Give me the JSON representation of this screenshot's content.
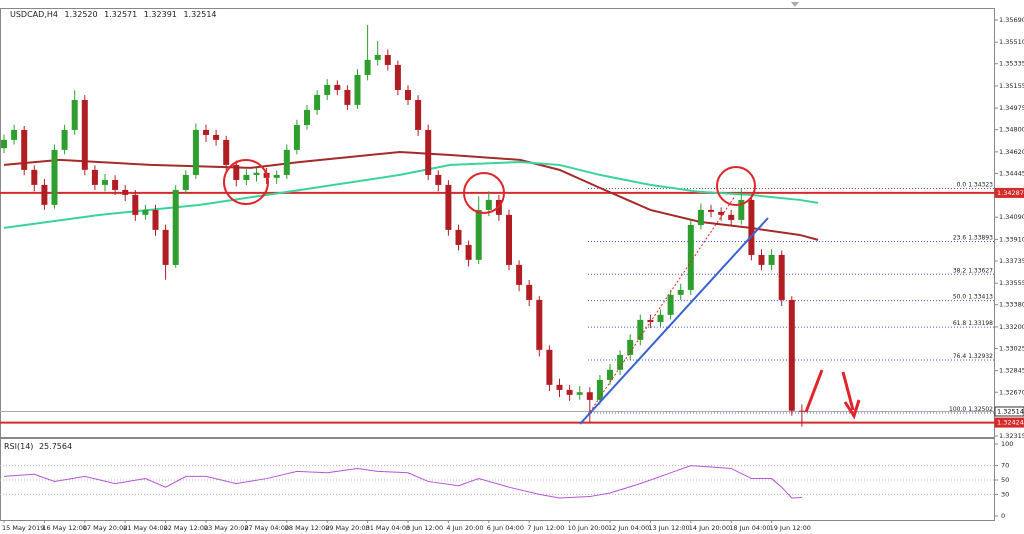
{
  "chart_data": {
    "type": "candlestick",
    "header": [
      "USDCAD,H4",
      "1.32520",
      "1.32571",
      "1.32391",
      "1.32514"
    ],
    "categories": [
      "15 May 2019",
      null,
      null,
      null,
      "16 May 12:00",
      null,
      null,
      null,
      "17 May 20:00",
      null,
      null,
      null,
      "21 May 04:00",
      null,
      null,
      null,
      "22 May 12:00",
      null,
      null,
      null,
      "23 May 20:00",
      null,
      null,
      null,
      "27 May 04:00",
      null,
      null,
      null,
      "28 May 12:00",
      null,
      null,
      null,
      "29 May 20:00",
      null,
      null,
      null,
      "31 May 04:00",
      null,
      null,
      null,
      "3 Jun 12:00",
      null,
      null,
      null,
      "4 Jun 20:00",
      null,
      null,
      null,
      "6 Jun 04:00",
      null,
      null,
      null,
      "7 Jun 12:00",
      null,
      null,
      null,
      "10 Jun 20:00",
      null,
      null,
      null,
      "12 Jun 04:00",
      null,
      null,
      null,
      "13 Jun 12:00",
      null,
      null,
      null,
      "14 Jun 20:00",
      null,
      null,
      null,
      "18 Jun 04:00",
      null,
      null,
      null,
      "19 Jun 12:00",
      null,
      null,
      null
    ],
    "open": [
      1.3465,
      1.34717,
      1.34798,
      1.34474,
      1.34352,
      1.3419,
      1.34636,
      1.34798,
      1.35041,
      1.34474,
      1.34352,
      1.34392,
      1.34311,
      1.34271,
      1.34109,
      1.34149,
      1.33987,
      1.33703,
      1.34311,
      1.34433,
      1.34798,
      1.34757,
      1.34717,
      1.34514,
      1.34392,
      1.34433,
      1.3445,
      1.34409,
      1.34433,
      1.34636,
      1.34838,
      1.3496,
      1.35082,
      1.35163,
      1.35122,
      1.35001,
      1.35244,
      1.35366,
      1.35406,
      1.35325,
      1.35122,
      1.35041,
      1.34798,
      1.34433,
      1.34352,
      1.33987,
      1.33865,
      1.33744,
      1.34149,
      1.3423,
      1.34109,
      1.33703,
      1.33541,
      1.33419,
      1.33014,
      1.3273,
      1.32689,
      1.32649,
      1.3267,
      1.32608,
      1.3277,
      1.32852,
      1.32973,
      1.33095,
      1.33257,
      1.3324,
      1.33298,
      1.3346,
      1.335,
      1.34027,
      1.34149,
      1.34133,
      1.34109,
      1.34068,
      1.3423,
      1.33784,
      1.33703,
      1.33784,
      1.33419,
      1.3252
    ],
    "high": [
      1.3476,
      1.3484,
      1.3483,
      1.3451,
      1.344,
      1.3468,
      1.3484,
      1.3512,
      1.3508,
      1.3451,
      1.3444,
      1.3443,
      1.3435,
      1.3431,
      1.3419,
      1.3419,
      1.3403,
      1.3435,
      1.3447,
      1.3485,
      1.3484,
      1.348,
      1.3475,
      1.3455,
      1.3448,
      1.3449,
      1.3449,
      1.3447,
      1.3468,
      1.3488,
      1.35,
      1.3512,
      1.3521,
      1.352,
      1.3516,
      1.3529,
      1.3565,
      1.3552,
      1.3545,
      1.3536,
      1.3516,
      1.3508,
      1.3484,
      1.3447,
      1.3439,
      1.3403,
      1.339,
      1.3426,
      1.343,
      1.3427,
      1.3415,
      1.3374,
      1.3358,
      1.3345,
      1.3305,
      1.3278,
      1.3273,
      1.3272,
      1.3271,
      1.3281,
      1.329,
      1.3301,
      1.3314,
      1.333,
      1.333,
      1.3334,
      1.335,
      1.3355,
      1.3407,
      1.342,
      1.3419,
      1.3417,
      1.3415,
      1.34323,
      1.3427,
      1.3383,
      1.3383,
      1.3382,
      1.3345,
      1.32571
    ],
    "low": [
      1.3461,
      1.3468,
      1.3443,
      1.343,
      1.3415,
      1.3416,
      1.346,
      1.3476,
      1.3443,
      1.3431,
      1.343,
      1.3427,
      1.3422,
      1.3406,
      1.3407,
      1.3394,
      1.33582,
      1.3368,
      1.3428,
      1.344,
      1.347,
      1.3467,
      1.3447,
      1.3434,
      1.3435,
      1.3438,
      1.3436,
      1.3436,
      1.344,
      1.346,
      1.348,
      1.3492,
      1.3504,
      1.3508,
      1.3496,
      1.3497,
      1.352,
      1.3532,
      1.3528,
      1.3508,
      1.35,
      1.3475,
      1.3439,
      1.343,
      1.3394,
      1.3382,
      1.3369,
      1.3371,
      1.341,
      1.3406,
      1.3366,
      1.3349,
      1.3337,
      1.3296,
      1.3268,
      1.3263,
      1.326,
      1.3261,
      1.32424,
      1.3257,
      1.3273,
      1.3281,
      1.3293,
      1.3305,
      1.3319,
      1.332,
      1.3326,
      1.3342,
      1.3346,
      1.3399,
      1.3409,
      1.3406,
      1.3402,
      1.3403,
      1.3374,
      1.3366,
      1.3366,
      1.3337,
      1.3248,
      1.32391
    ],
    "close": [
      1.34717,
      1.34798,
      1.34474,
      1.34352,
      1.3419,
      1.34636,
      1.34798,
      1.35041,
      1.34474,
      1.34352,
      1.34392,
      1.34311,
      1.34271,
      1.34109,
      1.34149,
      1.33987,
      1.33703,
      1.34311,
      1.34433,
      1.34798,
      1.34757,
      1.34717,
      1.34514,
      1.34392,
      1.34433,
      1.3445,
      1.34409,
      1.34433,
      1.34636,
      1.34838,
      1.3496,
      1.35082,
      1.35163,
      1.35122,
      1.35001,
      1.35244,
      1.35366,
      1.35406,
      1.35325,
      1.35122,
      1.35041,
      1.34798,
      1.34433,
      1.34352,
      1.33987,
      1.33865,
      1.33744,
      1.34149,
      1.3423,
      1.34109,
      1.33703,
      1.33541,
      1.33419,
      1.33014,
      1.3273,
      1.32689,
      1.32649,
      1.3267,
      1.32608,
      1.3277,
      1.32852,
      1.32973,
      1.33095,
      1.33257,
      1.3324,
      1.33298,
      1.3346,
      1.335,
      1.34027,
      1.34149,
      1.34133,
      1.34109,
      1.34068,
      1.3423,
      1.33784,
      1.33703,
      1.33784,
      1.33419,
      1.3252,
      1.32514
    ],
    "up_color": "#2e9e2e",
    "down_color": "#b01e24",
    "ylim": [
      1.32307,
      1.35787
    ],
    "yticks": [
      {
        "value": 1.3569,
        "label": "1.35690"
      },
      {
        "value": 1.3551,
        "label": "1.35510"
      },
      {
        "value": 1.35335,
        "label": "1.35335"
      },
      {
        "value": 1.35155,
        "label": "1.35155"
      },
      {
        "value": 1.34975,
        "label": "1.34975"
      },
      {
        "value": 1.348,
        "label": "1.34800"
      },
      {
        "value": 1.3462,
        "label": "1.34620"
      },
      {
        "value": 1.34445,
        "label": "1.34445"
      },
      {
        "value": 1.3409,
        "label": "1.34090"
      },
      {
        "value": 1.3391,
        "label": "1.33910"
      },
      {
        "value": 1.33735,
        "label": "1.33735"
      },
      {
        "value": 1.33555,
        "label": "1.33555"
      },
      {
        "value": 1.3338,
        "label": "1.33380"
      },
      {
        "value": 1.332,
        "label": "1.33200"
      },
      {
        "value": 1.33025,
        "label": "1.33025"
      },
      {
        "value": 1.32845,
        "label": "1.32845"
      },
      {
        "value": 1.3267,
        "label": "1.32670"
      },
      {
        "value": 1.3249,
        "label": "1.32490"
      },
      {
        "value": 1.32315,
        "label": "1.32315"
      }
    ],
    "moving_averages": [
      {
        "color": "#a52a2a",
        "x": [
          0,
          5.5,
          14.5,
          24.4,
          29.3,
          39.2,
          44.2,
          51.1,
          55,
          59,
          64,
          68.9,
          73.9,
          78.8,
          80.6
        ],
        "values": [
          1.34514,
          1.34555,
          1.34514,
          1.3449,
          1.34538,
          1.34619,
          1.34595,
          1.34555,
          1.34474,
          1.34328,
          1.34149,
          1.34052,
          1.34003,
          1.33946,
          1.33906
        ]
      },
      {
        "color": "#3ad49a",
        "x": [
          0,
          9.5,
          19.4,
          29.3,
          39.2,
          44.2,
          51.1,
          55,
          59,
          64,
          68.9,
          73.9,
          78.8,
          80.6
        ],
        "values": [
          1.34003,
          1.34109,
          1.3419,
          1.34311,
          1.34433,
          1.34514,
          1.34538,
          1.34514,
          1.34433,
          1.34352,
          1.34295,
          1.34271,
          1.3423,
          1.34206
        ]
      }
    ],
    "levels": [
      {
        "value": 1.34287,
        "color": "#d42a2a"
      },
      {
        "value": 1.32514,
        "color": "#aaaaaa"
      },
      {
        "value": 1.32424,
        "color": "#d42a2a"
      }
    ],
    "fibonacci": {
      "color": "#4a5ad0",
      "levels": [
        {
          "level": "0.0",
          "value": 1.34323
        },
        {
          "level": "23.6",
          "value": 1.33893
        },
        {
          "level": "38.2",
          "value": 1.33627
        },
        {
          "level": "50.0",
          "value": 1.33413
        },
        {
          "level": "61.8",
          "value": 1.33198
        },
        {
          "level": "76.4",
          "value": 1.32932
        },
        {
          "level": "100.0",
          "value": 1.32502
        }
      ]
    },
    "rsi": {
      "label": "RSI(14)",
      "color": "#b455d6",
      "ylim": [
        0,
        100
      ],
      "yticks": [
        100,
        70,
        50,
        30,
        0
      ],
      "x": [
        0,
        3,
        5,
        8,
        11,
        14,
        16,
        18,
        20,
        23,
        26,
        29,
        32,
        35,
        37,
        40,
        42,
        45,
        47,
        50,
        53,
        55,
        58,
        60,
        63,
        66,
        68,
        70,
        72,
        74,
        76,
        77,
        78,
        79
      ],
      "values": [
        55,
        58,
        48,
        55,
        45,
        52,
        40,
        55,
        55,
        45,
        52,
        62,
        60,
        66,
        62,
        60,
        48,
        42,
        52,
        40,
        30,
        25,
        27,
        32,
        45,
        60,
        70,
        68,
        66,
        52,
        52,
        40,
        25,
        25.7564
      ]
    }
  }
}
